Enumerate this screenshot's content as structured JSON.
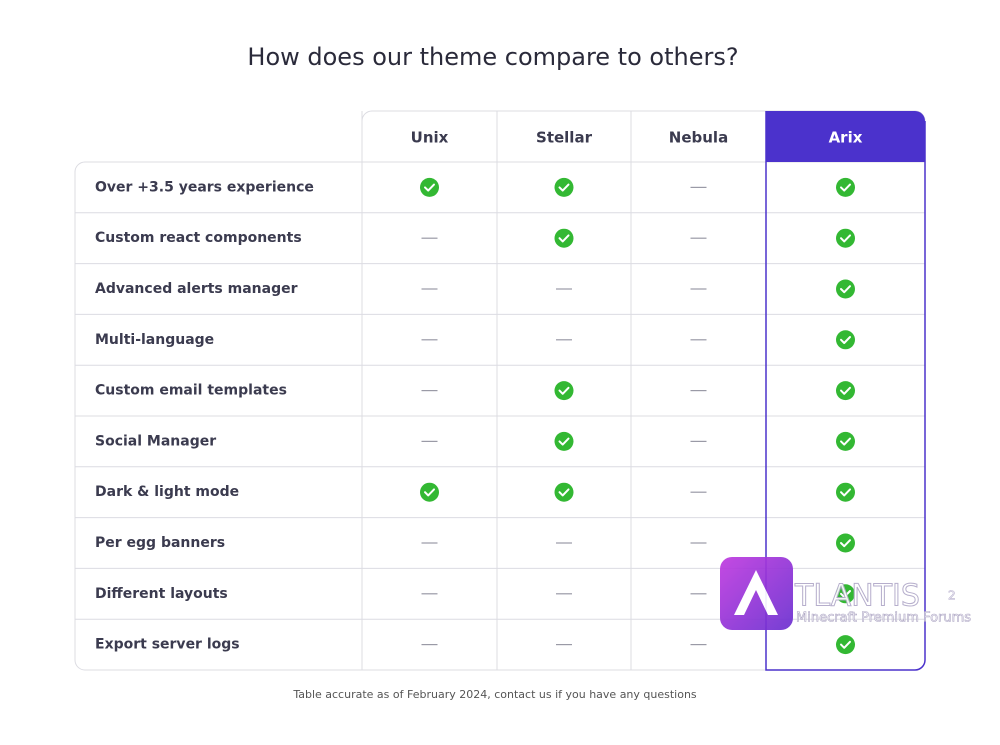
{
  "header": {
    "title": "How does our theme compare to others?"
  },
  "table": {
    "columns": [
      "Unix",
      "Stellar",
      "Nebula",
      "Arix"
    ],
    "rows": [
      {
        "feature": "Over +3.5 years experience",
        "available": [
          true,
          true,
          false,
          true
        ]
      },
      {
        "feature": "Custom react components",
        "available": [
          false,
          true,
          false,
          true
        ]
      },
      {
        "feature": "Advanced alerts manager",
        "available": [
          false,
          false,
          false,
          true
        ]
      },
      {
        "feature": "Multi-language",
        "available": [
          false,
          false,
          false,
          true
        ]
      },
      {
        "feature": "Custom email templates",
        "available": [
          false,
          true,
          false,
          true
        ]
      },
      {
        "feature": "Social Manager",
        "available": [
          false,
          true,
          false,
          true
        ]
      },
      {
        "feature": "Dark & light mode",
        "available": [
          true,
          true,
          false,
          true
        ]
      },
      {
        "feature": "Per egg banners",
        "available": [
          false,
          false,
          false,
          true
        ]
      },
      {
        "feature": "Different layouts",
        "available": [
          false,
          false,
          false,
          true
        ]
      },
      {
        "feature": "Export server logs",
        "available": [
          false,
          false,
          false,
          true
        ]
      }
    ]
  },
  "footnote": "Table accurate as of February 2024, contact us if you have any questions",
  "watermark": {
    "name": "TLANTIS",
    "sup": "2",
    "tagline": "Minecraft Premium Forums"
  }
}
